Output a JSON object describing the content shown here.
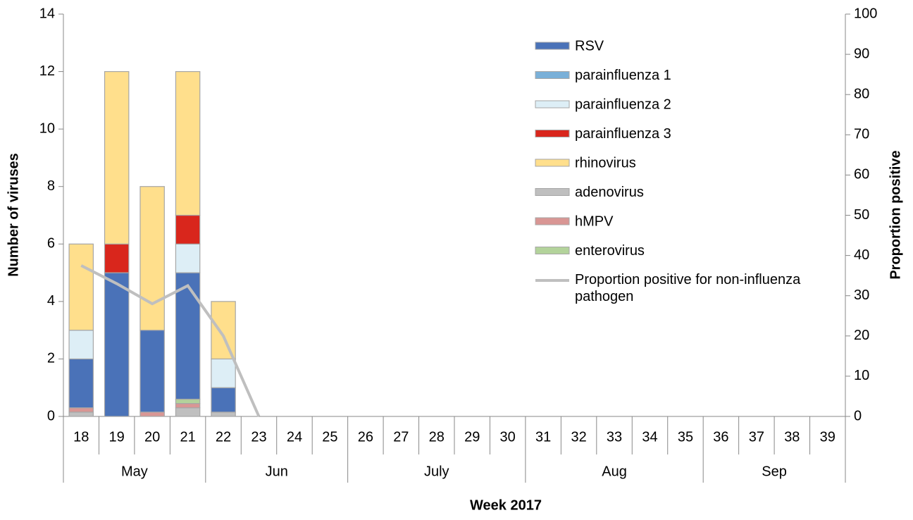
{
  "chart_data": {
    "type": "bar",
    "x_title": "Week 2017",
    "y_title": "Number of viruses",
    "y2_title": "Proportion positive",
    "categories": [
      "18",
      "19",
      "20",
      "21",
      "22",
      "23",
      "24",
      "25",
      "26",
      "27",
      "28",
      "29",
      "30",
      "31",
      "32",
      "33",
      "34",
      "35",
      "36",
      "37",
      "38",
      "39"
    ],
    "month_groups": [
      {
        "label": "May",
        "span": 4
      },
      {
        "label": "Jun",
        "span": 4
      },
      {
        "label": "July",
        "span": 5
      },
      {
        "label": "Aug",
        "span": 5
      },
      {
        "label": "Sep",
        "span": 4
      }
    ],
    "series": [
      {
        "name": "RSV",
        "color": "#4a72b8",
        "values": [
          1.7,
          5,
          2.85,
          4.4,
          0.85,
          0,
          0,
          0,
          0,
          0,
          0,
          0,
          0,
          0,
          0,
          0,
          0,
          0,
          0,
          0,
          0,
          0
        ]
      },
      {
        "name": "parainfluenza 1",
        "color": "#7ab0d8",
        "values": [
          0,
          0,
          0,
          0,
          0,
          0,
          0,
          0,
          0,
          0,
          0,
          0,
          0,
          0,
          0,
          0,
          0,
          0,
          0,
          0,
          0,
          0
        ]
      },
      {
        "name": "parainfluenza 2",
        "color": "#ddeef6",
        "values": [
          1,
          0,
          0,
          1,
          1,
          0,
          0,
          0,
          0,
          0,
          0,
          0,
          0,
          0,
          0,
          0,
          0,
          0,
          0,
          0,
          0,
          0
        ]
      },
      {
        "name": "parainfluenza 3",
        "color": "#d9261c",
        "values": [
          0,
          1,
          0,
          1,
          0,
          0,
          0,
          0,
          0,
          0,
          0,
          0,
          0,
          0,
          0,
          0,
          0,
          0,
          0,
          0,
          0,
          0
        ]
      },
      {
        "name": "rhinovirus",
        "color": "#ffdf8c",
        "values": [
          3,
          6,
          5,
          5,
          2,
          0,
          0,
          0,
          0,
          0,
          0,
          0,
          0,
          0,
          0,
          0,
          0,
          0,
          0,
          0,
          0,
          0
        ]
      },
      {
        "name": "adenovirus",
        "color": "#bfbfbf",
        "values": [
          0.15,
          0,
          0,
          0.3,
          0.15,
          0,
          0,
          0,
          0,
          0,
          0,
          0,
          0,
          0,
          0,
          0,
          0,
          0,
          0,
          0,
          0,
          0
        ]
      },
      {
        "name": "hMPV",
        "color": "#d99694",
        "values": [
          0.15,
          0,
          0.15,
          0.15,
          0,
          0,
          0,
          0,
          0,
          0,
          0,
          0,
          0,
          0,
          0,
          0,
          0,
          0,
          0,
          0,
          0,
          0
        ]
      },
      {
        "name": "enterovirus",
        "color": "#b3d39b",
        "values": [
          0,
          0,
          0,
          0.15,
          0,
          0,
          0,
          0,
          0,
          0,
          0,
          0,
          0,
          0,
          0,
          0,
          0,
          0,
          0,
          0,
          0,
          0
        ]
      },
      {
        "name": "Proportion positive for non-influenza pathogen",
        "type": "line",
        "axis": "y2",
        "color": "#bfbfbf",
        "values": [
          37.5,
          33,
          28,
          32.5,
          20,
          0,
          null,
          null,
          null,
          null,
          null,
          null,
          null,
          null,
          null,
          null,
          null,
          null,
          null,
          null,
          null,
          null
        ]
      }
    ],
    "ylim": [
      0,
      14
    ],
    "yticks": [
      0,
      2,
      4,
      6,
      8,
      10,
      12,
      14
    ],
    "y2lim": [
      0,
      100
    ],
    "y2ticks": [
      0,
      10,
      20,
      30,
      40,
      50,
      60,
      70,
      80,
      90,
      100
    ],
    "grid": false
  }
}
